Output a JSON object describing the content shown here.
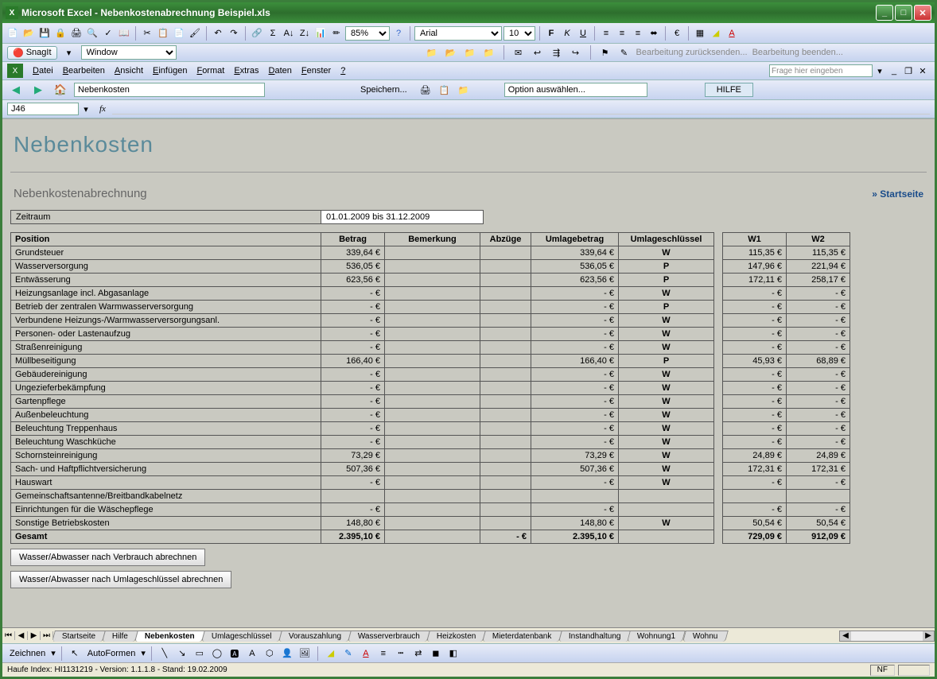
{
  "window": {
    "app": "Microsoft Excel",
    "doc": "Nebenkostenabrechnung Beispiel.xls"
  },
  "font": {
    "name": "Arial",
    "size": "10"
  },
  "zoom": "85%",
  "snagit": {
    "label": "SnagIt",
    "scope_label": "Window"
  },
  "review": {
    "return": "Bearbeitung zurücksenden...",
    "end": "Bearbeitung beenden..."
  },
  "menus": [
    "Datei",
    "Bearbeiten",
    "Ansicht",
    "Einfügen",
    "Format",
    "Extras",
    "Daten",
    "Fenster",
    "?"
  ],
  "help_placeholder": "Frage hier eingeben",
  "nav": {
    "location": "Nebenkosten",
    "save": "Speichern...",
    "option": "Option auswählen...",
    "help": "HILFE"
  },
  "cellref": "J46",
  "page": {
    "title": "Nebenkosten",
    "subtitle": "Nebenkostenabrechnung",
    "start": "» Startseite",
    "period_label": "Zeitraum",
    "period_value": "01.01.2009 bis 31.12.2009"
  },
  "columns": [
    "Position",
    "Betrag",
    "Bemerkung",
    "Abzüge",
    "Umlagebetrag",
    "Umlageschlüssel",
    "W1",
    "W2"
  ],
  "rows": [
    {
      "pos": "Grundsteuer",
      "betrag": "339,64 €",
      "abz": "",
      "umb": "339,64 €",
      "key": "W",
      "w1": "115,35 €",
      "w2": "115,35 €"
    },
    {
      "pos": "Wasserversorgung",
      "betrag": "536,05 €",
      "abz": "",
      "umb": "536,05 €",
      "key": "P",
      "w1": "147,96 €",
      "w2": "221,94 €"
    },
    {
      "pos": "Entwässerung",
      "betrag": "623,56 €",
      "abz": "",
      "umb": "623,56 €",
      "key": "P",
      "w1": "172,11 €",
      "w2": "258,17 €"
    },
    {
      "pos": "Heizungsanlage incl. Abgasanlage",
      "betrag": "-   €",
      "abz": "",
      "umb": "-   €",
      "key": "W",
      "w1": "-   €",
      "w2": "-   €"
    },
    {
      "pos": "Betrieb der zentralen Warmwasserversorgung",
      "betrag": "-   €",
      "abz": "",
      "umb": "-   €",
      "key": "P",
      "w1": "-   €",
      "w2": "-   €"
    },
    {
      "pos": "Verbundene Heizungs-/Warmwasserversorgungsanl.",
      "betrag": "-   €",
      "abz": "",
      "umb": "-   €",
      "key": "W",
      "w1": "-   €",
      "w2": "-   €"
    },
    {
      "pos": "Personen- oder Lastenaufzug",
      "betrag": "-   €",
      "abz": "",
      "umb": "-   €",
      "key": "W",
      "w1": "-   €",
      "w2": "-   €"
    },
    {
      "pos": "Straßenreinigung",
      "betrag": "-   €",
      "abz": "",
      "umb": "-   €",
      "key": "W",
      "w1": "-   €",
      "w2": "-   €"
    },
    {
      "pos": "Müllbeseitigung",
      "betrag": "166,40 €",
      "abz": "",
      "umb": "166,40 €",
      "key": "P",
      "w1": "45,93 €",
      "w2": "68,89 €"
    },
    {
      "pos": "Gebäudereinigung",
      "betrag": "-   €",
      "abz": "",
      "umb": "-   €",
      "key": "W",
      "w1": "-   €",
      "w2": "-   €"
    },
    {
      "pos": "Ungezieferbekämpfung",
      "betrag": "-   €",
      "abz": "",
      "umb": "-   €",
      "key": "W",
      "w1": "-   €",
      "w2": "-   €"
    },
    {
      "pos": "Gartenpflege",
      "betrag": "-   €",
      "abz": "",
      "umb": "-   €",
      "key": "W",
      "w1": "-   €",
      "w2": "-   €"
    },
    {
      "pos": "Außenbeleuchtung",
      "betrag": "-   €",
      "abz": "",
      "umb": "-   €",
      "key": "W",
      "w1": "-   €",
      "w2": "-   €"
    },
    {
      "pos": "Beleuchtung Treppenhaus",
      "betrag": "-   €",
      "abz": "",
      "umb": "-   €",
      "key": "W",
      "w1": "-   €",
      "w2": "-   €"
    },
    {
      "pos": "Beleuchtung Waschküche",
      "betrag": "-   €",
      "abz": "",
      "umb": "-   €",
      "key": "W",
      "w1": "-   €",
      "w2": "-   €"
    },
    {
      "pos": "Schornsteinreinigung",
      "betrag": "73,29 €",
      "abz": "",
      "umb": "73,29 €",
      "key": "W",
      "w1": "24,89 €",
      "w2": "24,89 €"
    },
    {
      "pos": "Sach- und Haftpflichtversicherung",
      "betrag": "507,36 €",
      "abz": "",
      "umb": "507,36 €",
      "key": "W",
      "w1": "172,31 €",
      "w2": "172,31 €"
    },
    {
      "pos": "Hauswart",
      "betrag": "-   €",
      "abz": "",
      "umb": "-   €",
      "key": "W",
      "w1": "-   €",
      "w2": "-   €"
    },
    {
      "pos": "Gemeinschaftsantenne/Breitbandkabelnetz",
      "betrag": "",
      "abz": "",
      "umb": "",
      "key": "",
      "w1": "",
      "w2": ""
    },
    {
      "pos": "Einrichtungen für die Wäschepflege",
      "betrag": "-   €",
      "abz": "",
      "umb": "-   €",
      "key": "",
      "w1": "-   €",
      "w2": "-   €"
    },
    {
      "pos": "Sonstige Betriebskosten",
      "betrag": "148,80 €",
      "abz": "",
      "umb": "148,80 €",
      "key": "W",
      "w1": "50,54 €",
      "w2": "50,54 €"
    }
  ],
  "total": {
    "pos": "Gesamt",
    "betrag": "2.395,10 €",
    "abz": "-   €",
    "umb": "2.395,10 €",
    "w1": "729,09 €",
    "w2": "912,09 €"
  },
  "buttons": {
    "b1": "Wasser/Abwasser nach Verbrauch abrechnen",
    "b2": "Wasser/Abwasser nach Umlageschlüssel abrechnen"
  },
  "tabs": [
    "Startseite",
    "Hilfe",
    "Nebenkosten",
    "Umlageschlüssel",
    "Vorauszahlung",
    "Wasserverbrauch",
    "Heizkosten",
    "Mieterdatenbank",
    "Instandhaltung",
    "Wohnung1",
    "Wohnu"
  ],
  "active_tab": "Nebenkosten",
  "draw": {
    "label": "Zeichnen",
    "autoforms": "AutoFormen"
  },
  "status": {
    "left": "Haufe Index: HI1131219 - Version: 1.1.1.8 - Stand: 19.02.2009",
    "nf": "NF"
  }
}
